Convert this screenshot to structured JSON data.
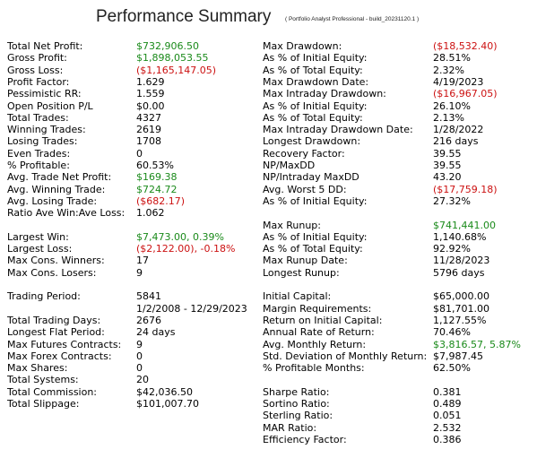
{
  "header": {
    "title": "Performance Summary",
    "subtitle": "( Portfolio Analyst Professional - build_20231120.1 )"
  },
  "columns": [
    {
      "groups": [
        [
          {
            "label": "Total Net Profit:",
            "value": "$732,906.50",
            "color": "#1a8a1a"
          },
          {
            "label": "Gross Profit:",
            "value": "$1,898,053.55",
            "color": "#1a8a1a"
          },
          {
            "label": "Gross Loss:",
            "value": "($1,165,147.05)",
            "color": "#cc1111"
          },
          {
            "label": "Profit Factor:",
            "value": "1.629"
          },
          {
            "label": "Pessimistic RR:",
            "value": "1.559"
          },
          {
            "label": "Open Position P/L",
            "value": "$0.00"
          },
          {
            "label": "Total Trades:",
            "value": "4327"
          },
          {
            "label": "Winning Trades:",
            "value": "2619"
          },
          {
            "label": "Losing Trades:",
            "value": "1708"
          },
          {
            "label": "Even Trades:",
            "value": "0"
          },
          {
            "label": "% Profitable:",
            "value": "60.53%"
          },
          {
            "label": "Avg. Trade Net Profit:",
            "value": "$169.38",
            "color": "#1a8a1a"
          },
          {
            "label": "Avg. Winning Trade:",
            "value": "$724.72",
            "color": "#1a8a1a"
          },
          {
            "label": "Avg. Losing Trade:",
            "value": "($682.17)",
            "color": "#cc1111"
          },
          {
            "label": "Ratio Ave Win:Ave Loss:",
            "value": "1.062"
          }
        ],
        [
          {
            "label": "Largest Win:",
            "value": "$7,473.00, 0.39%",
            "color": "#1a8a1a"
          },
          {
            "label": "Largest Loss:",
            "value": "($2,122.00), -0.18%",
            "color": "#cc1111"
          },
          {
            "label": "Max Cons. Winners:",
            "value": "17"
          },
          {
            "label": "Max Cons. Losers:",
            "value": "9"
          }
        ],
        [
          {
            "label": "Trading Period:",
            "value": "5841"
          },
          {
            "value": "1/2/2008 - 12/29/2023"
          },
          {
            "label": "Total Trading Days:",
            "value": "2676"
          },
          {
            "label": "Longest Flat Period:",
            "value": "24 days"
          },
          {
            "label": "Max Futures Contracts:",
            "value": "9"
          },
          {
            "label": "Max Forex Contracts:",
            "value": "0"
          },
          {
            "label": "Max Shares:",
            "value": "0"
          },
          {
            "label": "Total Systems:",
            "value": "20"
          },
          {
            "label": "Total Commission:",
            "value": "$42,036.50"
          },
          {
            "label": "Total Slippage:",
            "value": "$101,007.70"
          }
        ]
      ]
    },
    {
      "groups": [
        [
          {
            "label": "Max Drawdown:",
            "value": "($18,532.40)",
            "color": "#cc1111"
          },
          {
            "label": "As % of Initial Equity:",
            "value": "28.51%"
          },
          {
            "label": "As % of Total Equity:",
            "value": "2.32%"
          },
          {
            "label": "Max Drawdown Date:",
            "value": "4/19/2023"
          },
          {
            "label": "Max Intraday Drawdown:",
            "value": "($16,967.05)",
            "color": "#cc1111"
          },
          {
            "label": "As % of Initial Equity:",
            "value": "26.10%"
          },
          {
            "label": "As % of Total Equity:",
            "value": "2.13%"
          },
          {
            "label": "Max Intraday Drawdown Date:",
            "value": "1/28/2022"
          },
          {
            "label": "Longest Drawdown:",
            "value": "216 days"
          },
          {
            "label": "Recovery Factor:",
            "value": "39.55"
          },
          {
            "label": "NP/MaxDD",
            "value": "39.55"
          },
          {
            "label": "NP/Intraday MaxDD",
            "value": "43.20"
          },
          {
            "label": "Avg. Worst 5 DD:",
            "value": "($17,759.18)",
            "color": "#cc1111"
          },
          {
            "label": "As % of Initial Equity:",
            "value": "27.32%"
          }
        ],
        [
          {
            "label": "Max Runup:",
            "value": "$741,441.00",
            "color": "#1a8a1a"
          },
          {
            "label": "As % of Initial Equity:",
            "value": "1,140.68%"
          },
          {
            "label": "As % of Total Equity:",
            "value": "92.92%"
          },
          {
            "label": "Max Runup Date:",
            "value": "11/28/2023"
          },
          {
            "label": "Longest Runup:",
            "value": "5796 days"
          }
        ],
        [
          {
            "label": "Initial Capital:",
            "value": "$65,000.00"
          },
          {
            "label": "Margin Requirements:",
            "value": "$81,701.00"
          },
          {
            "label": "Return on Initial Capital:",
            "value": "1,127.55%"
          },
          {
            "label": "Annual Rate of Return:",
            "value": "70.46%"
          },
          {
            "label": "Avg. Monthly Return:",
            "value": "$3,816.57, 5.87%",
            "color": "#1a8a1a"
          },
          {
            "label": "Std. Deviation of Monthly Return:",
            "value": "$7,987.45"
          },
          {
            "label": "% Profitable Months:",
            "value": "62.50%"
          }
        ],
        [
          {
            "label": "Sharpe Ratio:",
            "value": "0.381"
          },
          {
            "label": "Sortino Ratio:",
            "value": "0.489"
          },
          {
            "label": "Sterling Ratio:",
            "value": "0.051"
          },
          {
            "label": "MAR Ratio:",
            "value": "2.532"
          },
          {
            "label": "Efficiency Factor:",
            "value": "0.386"
          }
        ]
      ]
    }
  ]
}
